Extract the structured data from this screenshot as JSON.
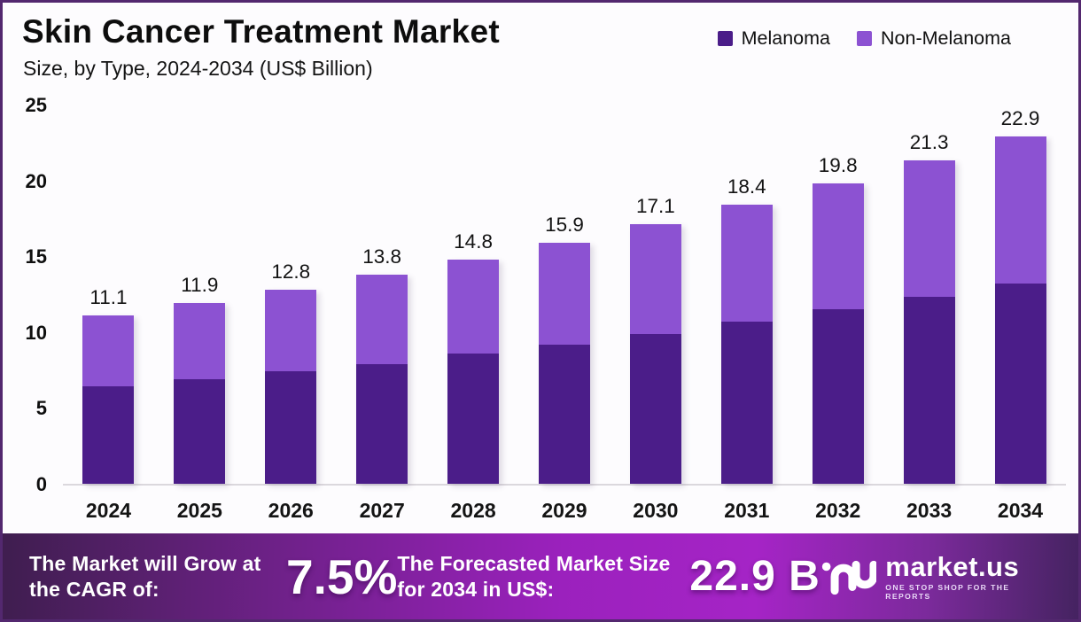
{
  "header": {
    "title": "Skin Cancer Treatment Market",
    "subtitle": "Size, by Type, 2024-2034 (US$ Billion)"
  },
  "legend": [
    {
      "label": "Melanoma",
      "color": "#4b1d89"
    },
    {
      "label": "Non-Melanoma",
      "color": "#8c52d2"
    }
  ],
  "chart_data": {
    "type": "bar",
    "stacked": true,
    "title": "Skin Cancer Treatment Market Size, by Type, 2024-2034 (US$ Billion)",
    "categories": [
      "2024",
      "2025",
      "2026",
      "2027",
      "2028",
      "2029",
      "2030",
      "2031",
      "2032",
      "2033",
      "2034"
    ],
    "series": [
      {
        "name": "Melanoma",
        "color": "#4b1d89",
        "values": [
          6.4,
          6.9,
          7.4,
          7.9,
          8.6,
          9.2,
          9.9,
          10.7,
          11.5,
          12.3,
          13.2
        ]
      },
      {
        "name": "Non-Melanoma",
        "color": "#8c52d2",
        "values": [
          4.7,
          5.0,
          5.4,
          5.9,
          6.2,
          6.7,
          7.2,
          7.7,
          8.3,
          9.0,
          9.7
        ]
      }
    ],
    "totals": [
      "11.1",
      "11.9",
      "12.8",
      "13.8",
      "14.8",
      "15.9",
      "17.1",
      "18.4",
      "19.8",
      "21.3",
      "22.9"
    ],
    "xlabel": "",
    "ylabel": "",
    "ylim": [
      0,
      25
    ],
    "yticks": [
      0,
      5,
      10,
      15,
      20,
      25
    ],
    "grid": false,
    "legend_position": "top-right"
  },
  "footer": {
    "cagr_label": "The Market will Grow at the CAGR of:",
    "cagr_value": "7.5%",
    "forecast_label": "The Forecasted Market Size for 2034 in US$:",
    "forecast_value": "22.9 B",
    "brand": "market.us",
    "brand_tagline": "ONE STOP SHOP FOR THE REPORTS"
  }
}
